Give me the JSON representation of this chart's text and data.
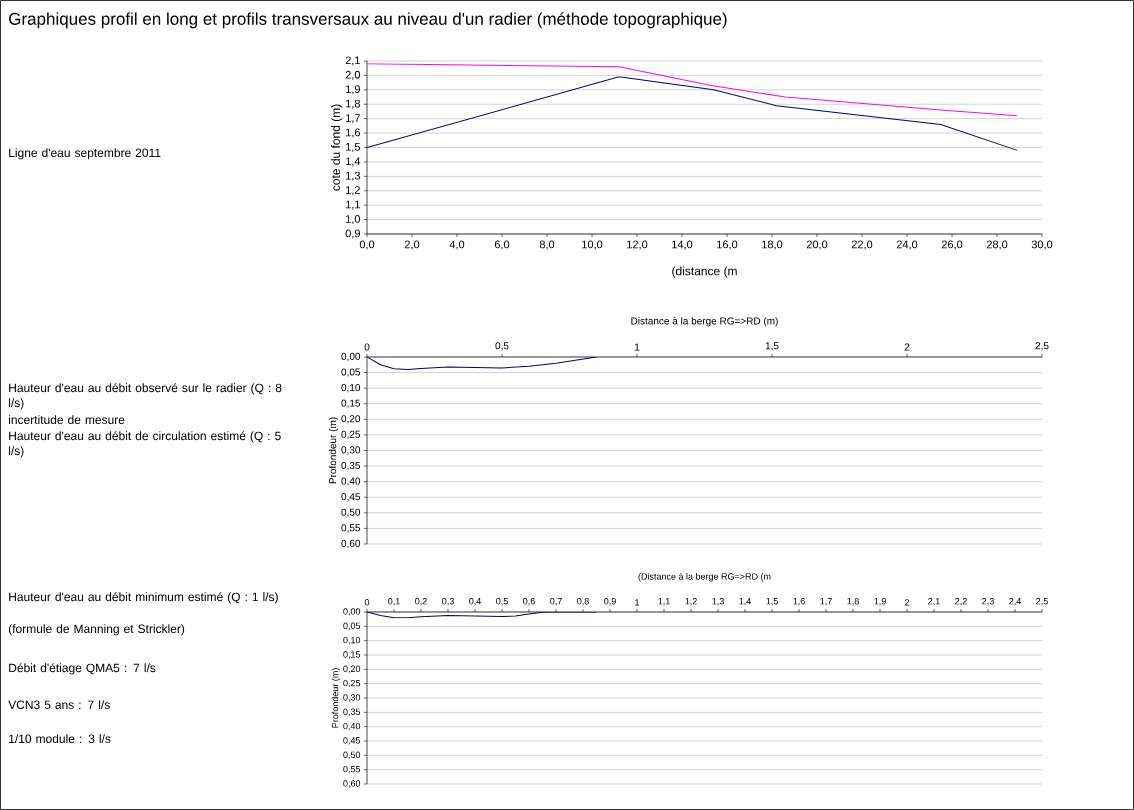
{
  "chart_data": [
    {
      "type": "line",
      "title": "Graphiques profil en long et profils transversaux au niveau d'un radier (méthode topographique)",
      "xlabel": "(distance (m",
      "ylabel": "cote du fond (m)",
      "annotations": [
        "Ligne d'eau septembre 2011"
      ],
      "xlim": [
        0,
        30
      ],
      "ylim": [
        0.9,
        2.1
      ],
      "xticks": [
        {
          "value": 0,
          "label": "0,0"
        },
        {
          "value": 2,
          "label": "2,0"
        },
        {
          "value": 4,
          "label": "4,0"
        },
        {
          "value": 6,
          "label": "6,0"
        },
        {
          "value": 8,
          "label": "8,0"
        },
        {
          "value": 10,
          "label": "10,0"
        },
        {
          "value": 12,
          "label": "12,0"
        },
        {
          "value": 14,
          "label": "14,0"
        },
        {
          "value": 16,
          "label": "16,0"
        },
        {
          "value": 18,
          "label": "18,0"
        },
        {
          "value": 20,
          "label": "20,0"
        },
        {
          "value": 22,
          "label": "22,0"
        },
        {
          "value": 24,
          "label": "24,0"
        },
        {
          "value": 26,
          "label": "26,0"
        },
        {
          "value": 28,
          "label": "28,0"
        },
        {
          "value": 30,
          "label": "30,0"
        }
      ],
      "yticks": [
        {
          "value": 0.9,
          "label": "0,9"
        },
        {
          "value": 1.0,
          "label": "1,0"
        },
        {
          "value": 1.1,
          "label": "1,1"
        },
        {
          "value": 1.2,
          "label": "1,2"
        },
        {
          "value": 1.3,
          "label": "1,3"
        },
        {
          "value": 1.4,
          "label": "1,4"
        },
        {
          "value": 1.5,
          "label": "1,5"
        },
        {
          "value": 1.6,
          "label": "1,6"
        },
        {
          "value": 1.7,
          "label": "1,7"
        },
        {
          "value": 1.8,
          "label": "1,8"
        },
        {
          "value": 1.9,
          "label": "1,9"
        },
        {
          "value": 2.0,
          "label": "2,0"
        },
        {
          "value": 2.1,
          "label": "2,1"
        }
      ],
      "grid": "y",
      "series": [
        {
          "color": "#ff00ff",
          "x": [
            0,
            11.2,
            15.3,
            18.6,
            25.5,
            28.9
          ],
          "values": [
            2.08,
            2.06,
            1.93,
            1.85,
            1.76,
            1.72
          ]
        },
        {
          "color": "#000080",
          "x": [
            0,
            11.2,
            15.4,
            18.2,
            25.5,
            28.9
          ],
          "values": [
            1.5,
            1.99,
            1.9,
            1.79,
            1.66,
            1.48
          ]
        }
      ]
    },
    {
      "type": "line",
      "xlabel": "Distance à la berge RG=>RD (m)",
      "ylabel": "Profondeur (m)",
      "annotations": [
        "Hauteur d'eau au débit observé sur le radier (Q : 8 l/s)",
        "incertitude de mesure",
        "Hauteur d'eau au débit de circulation estimé (Q : 5 l/s)"
      ],
      "xlim": [
        0,
        2.5
      ],
      "ylim": [
        0.6,
        0
      ],
      "xticks": [
        0,
        {
          "value": 0.5,
          "label": "0,5"
        },
        1,
        {
          "value": 1.5,
          "label": "1,5"
        },
        2,
        {
          "value": 2.5,
          "label": "2,5"
        }
      ],
      "yticks": [
        {
          "value": 0,
          "label": "0,00"
        },
        {
          "value": 0.05,
          "label": "0,05"
        },
        {
          "value": 0.1,
          "label": "0,10"
        },
        {
          "value": 0.15,
          "label": "0,15"
        },
        {
          "value": 0.2,
          "label": "0,20"
        },
        {
          "value": 0.25,
          "label": "0,25"
        },
        {
          "value": 0.3,
          "label": "0,30"
        },
        {
          "value": 0.35,
          "label": "0,35"
        },
        {
          "value": 0.4,
          "label": "0,40"
        },
        {
          "value": 0.45,
          "label": "0,45"
        },
        {
          "value": 0.5,
          "label": "0,50"
        },
        {
          "value": 0.55,
          "label": "0,55"
        },
        {
          "value": 0.6,
          "label": "0,60"
        }
      ],
      "grid": "y",
      "series": [
        {
          "color": "#000080",
          "x": [
            0,
            0.05,
            0.1,
            0.15,
            0.2,
            0.3,
            0.4,
            0.5,
            0.6,
            0.7,
            0.85
          ],
          "values": [
            0,
            0.025,
            0.038,
            0.04,
            0.037,
            0.032,
            0.034,
            0.035,
            0.03,
            0.02,
            0
          ]
        }
      ]
    },
    {
      "type": "line",
      "xlabel": "(Distance à la berge RG=>RD (m",
      "ylabel": "Profondeur (m)",
      "annotations": [
        "Hauteur d'eau au débit minimum estimé (Q : 1 l/s)",
        "(formule de Manning et Strickler)",
        "Débit d'étiage QMA5 : 7 l/s",
        "VCN3 5 ans : 7 l/s",
        "1/10 module : 3 l/s"
      ],
      "xlim": [
        0,
        2.5
      ],
      "ylim": [
        0.6,
        0
      ],
      "xticks": [
        0,
        {
          "value": 0.1,
          "label": "0,1"
        },
        {
          "value": 0.2,
          "label": "0,2"
        },
        {
          "value": 0.3,
          "label": "0,3"
        },
        {
          "value": 0.4,
          "label": "0,4"
        },
        {
          "value": 0.5,
          "label": "0,5"
        },
        {
          "value": 0.6,
          "label": "0,6"
        },
        {
          "value": 0.7,
          "label": "0,7"
        },
        {
          "value": 0.8,
          "label": "0,8"
        },
        {
          "value": 0.9,
          "label": "0,9"
        },
        1,
        {
          "value": 1.1,
          "label": "1,1"
        },
        {
          "value": 1.2,
          "label": "1,2"
        },
        {
          "value": 1.3,
          "label": "1,3"
        },
        {
          "value": 1.4,
          "label": "1,4"
        },
        {
          "value": 1.5,
          "label": "1,5"
        },
        {
          "value": 1.6,
          "label": "1,6"
        },
        {
          "value": 1.7,
          "label": "1,7"
        },
        {
          "value": 1.8,
          "label": "1,8"
        },
        {
          "value": 1.9,
          "label": "1,9"
        },
        2,
        {
          "value": 2.1,
          "label": "2,1"
        },
        {
          "value": 2.2,
          "label": "2,2"
        },
        {
          "value": 2.3,
          "label": "2,3"
        },
        {
          "value": 2.4,
          "label": "2,4"
        },
        {
          "value": 2.5,
          "label": "2,5"
        }
      ],
      "yticks": [
        {
          "value": 0,
          "label": "0,00"
        },
        {
          "value": 0.05,
          "label": "0,05"
        },
        {
          "value": 0.1,
          "label": "0,10"
        },
        {
          "value": 0.15,
          "label": "0,15"
        },
        {
          "value": 0.2,
          "label": "0,20"
        },
        {
          "value": 0.25,
          "label": "0,25"
        },
        {
          "value": 0.3,
          "label": "0,30"
        },
        {
          "value": 0.35,
          "label": "0,35"
        },
        {
          "value": 0.4,
          "label": "0,40"
        },
        {
          "value": 0.45,
          "label": "0,45"
        },
        {
          "value": 0.5,
          "label": "0,50"
        },
        {
          "value": 0.55,
          "label": "0,55"
        },
        {
          "value": 0.6,
          "label": "0,60"
        }
      ],
      "grid": "y",
      "series": [
        {
          "color": "#000080",
          "x": [
            0,
            0.05,
            0.1,
            0.15,
            0.2,
            0.3,
            0.4,
            0.5,
            0.55,
            0.6,
            0.65,
            0.7,
            0.85
          ],
          "values": [
            0,
            0.012,
            0.02,
            0.02,
            0.017,
            0.012,
            0.014,
            0.016,
            0.014,
            0.007,
            0.001,
            0,
            0
          ]
        }
      ]
    }
  ]
}
